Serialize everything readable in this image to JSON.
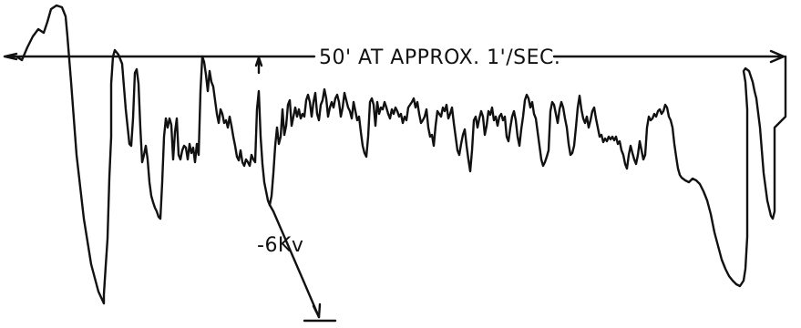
{
  "figure": {
    "time_scale_label": "50' AT APPROX. 1'/SEC.",
    "voltage_label": "-6Kv"
  },
  "colors": {
    "ink": "#111111",
    "background": "#ffffff"
  }
}
